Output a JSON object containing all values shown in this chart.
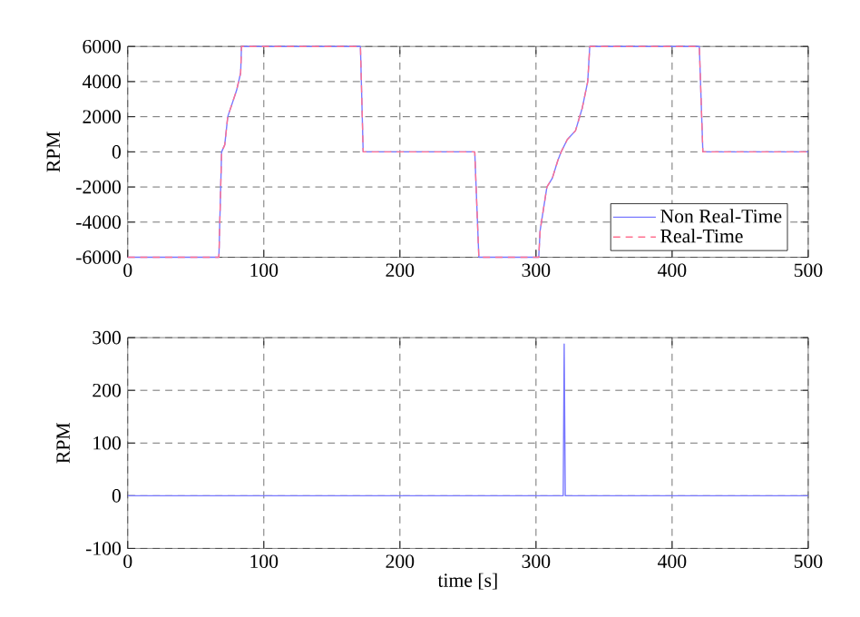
{
  "chart_data": [
    {
      "type": "line",
      "ylabel": "RPM",
      "x": [
        0,
        67,
        69,
        71.3,
        73.5,
        80,
        83,
        83.6,
        171,
        173,
        255,
        258,
        302,
        303,
        308,
        312,
        316,
        318.5,
        323,
        329,
        334,
        338,
        339.5,
        420,
        422.6,
        500
      ],
      "series": [
        {
          "name": "Non Real-Time",
          "color": "#7878ff",
          "line_style": "solid",
          "values": [
            -6000,
            -6000,
            0,
            400,
            2000,
            3500,
            4500,
            6000,
            6000,
            0,
            0,
            -6000,
            -6000,
            -4500,
            -2000,
            -1500,
            -500,
            0,
            700,
            1200,
            2500,
            4000,
            6000,
            6000,
            0,
            0
          ]
        },
        {
          "name": "Real-Time",
          "color": "#ff7090",
          "line_style": "dashed",
          "values": [
            -6000,
            -6000,
            0,
            400,
            2000,
            3500,
            4500,
            6000,
            6000,
            0,
            0,
            -6000,
            -6000,
            -4500,
            -2000,
            -1500,
            -500,
            0,
            700,
            1200,
            2500,
            4000,
            6000,
            6000,
            0,
            0
          ]
        }
      ],
      "xlim": [
        0,
        500
      ],
      "xticks": [
        0,
        100,
        200,
        300,
        400,
        500
      ],
      "ylim": [
        -6000,
        6000
      ],
      "yticks": [
        -6000,
        -4000,
        -2000,
        0,
        2000,
        4000,
        6000
      ],
      "grid": true,
      "legend": "bottom right"
    },
    {
      "type": "line",
      "xlabel": "time [s]",
      "ylabel": "RPM",
      "x": [
        0,
        320,
        320.7,
        321.5,
        500
      ],
      "series": [
        {
          "color": "#7878ff",
          "line_style": "solid",
          "values": [
            0,
            0,
            288,
            0,
            0
          ]
        }
      ],
      "xlim": [
        0,
        500
      ],
      "xticks": [
        0,
        100,
        200,
        300,
        400,
        500
      ],
      "ylim": [
        -100,
        300
      ],
      "yticks": [
        -100,
        0,
        100,
        200,
        300
      ],
      "grid": true
    }
  ]
}
